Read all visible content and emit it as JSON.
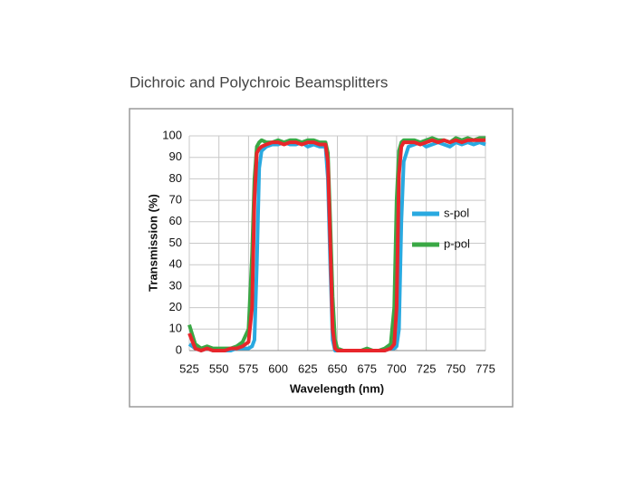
{
  "chart_data": {
    "type": "line",
    "title": "Dichroic and Polychroic Beamsplitters",
    "x_label": "Wavelength (nm)",
    "y_label": "Transmission (%)",
    "x": [
      525,
      530,
      535,
      540,
      545,
      550,
      555,
      560,
      565,
      570,
      575,
      578,
      580,
      582,
      584,
      586,
      590,
      595,
      600,
      605,
      610,
      615,
      620,
      625,
      630,
      635,
      640,
      642,
      644,
      646,
      648,
      650,
      655,
      660,
      665,
      670,
      675,
      680,
      685,
      690,
      695,
      698,
      700,
      702,
      704,
      706,
      710,
      715,
      720,
      725,
      730,
      735,
      740,
      745,
      750,
      755,
      760,
      765,
      770,
      775
    ],
    "series": [
      {
        "name": "s-pol",
        "color": "#29a9e0",
        "values": [
          3,
          1,
          0,
          1,
          0,
          0,
          0,
          0,
          1,
          1,
          1,
          2,
          5,
          40,
          85,
          93,
          95,
          96,
          96,
          97,
          96,
          96,
          97,
          95,
          96,
          95,
          95,
          80,
          40,
          5,
          0,
          0,
          0,
          0,
          0,
          0,
          0,
          0,
          0,
          0,
          1,
          1,
          2,
          10,
          60,
          88,
          95,
          96,
          97,
          95,
          96,
          97,
          96,
          95,
          97,
          96,
          97,
          96,
          97,
          96
        ]
      },
      {
        "name": "p-pol",
        "color": "#3aa845",
        "values": [
          12,
          3,
          1,
          2,
          1,
          1,
          1,
          1,
          2,
          4,
          10,
          45,
          80,
          95,
          97,
          98,
          97,
          97,
          98,
          97,
          98,
          98,
          97,
          98,
          98,
          97,
          97,
          92,
          60,
          25,
          5,
          1,
          0,
          0,
          0,
          0,
          1,
          0,
          0,
          1,
          3,
          20,
          70,
          93,
          97,
          98,
          98,
          98,
          97,
          98,
          99,
          98,
          98,
          97,
          99,
          98,
          99,
          98,
          99,
          99
        ]
      },
      {
        "color": "#e8262b",
        "values": [
          8,
          1,
          0,
          1,
          0,
          0,
          0,
          1,
          1,
          2,
          4,
          20,
          70,
          92,
          94,
          95,
          96,
          97,
          97,
          96,
          97,
          97,
          96,
          97,
          97,
          96,
          96,
          88,
          50,
          10,
          1,
          0,
          0,
          0,
          0,
          0,
          0,
          0,
          0,
          0,
          1,
          3,
          20,
          82,
          95,
          97,
          97,
          97,
          96,
          97,
          98,
          97,
          98,
          97,
          98,
          97,
          98,
          98,
          98,
          98
        ]
      }
    ],
    "xlim": [
      525,
      775
    ],
    "xticks": [
      525,
      550,
      575,
      600,
      625,
      650,
      675,
      700,
      725,
      750,
      775
    ],
    "ylim": [
      0,
      100
    ],
    "yticks": [
      0,
      10,
      20,
      30,
      40,
      50,
      60,
      70,
      80,
      90,
      100
    ],
    "grid": true,
    "legend": "right"
  }
}
